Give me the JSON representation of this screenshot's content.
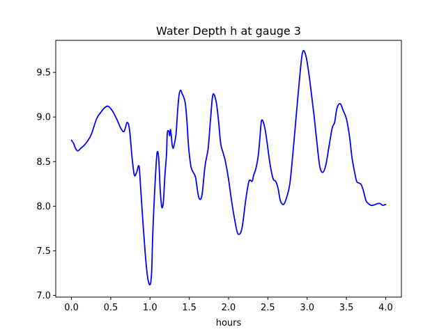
{
  "chart_data": {
    "type": "line",
    "title": "Water Depth h at gauge 3",
    "xlabel": "hours",
    "ylabel": "",
    "xlim": [
      -0.2,
      4.2
    ],
    "ylim": [
      6.98,
      9.86
    ],
    "xticks": [
      0.0,
      0.5,
      1.0,
      1.5,
      2.0,
      2.5,
      3.0,
      3.5,
      4.0
    ],
    "xtick_labels": [
      "0.0",
      "0.5",
      "1.0",
      "1.5",
      "2.0",
      "2.5",
      "3.0",
      "3.5",
      "4.0"
    ],
    "yticks": [
      7.0,
      7.5,
      8.0,
      8.5,
      9.0,
      9.5
    ],
    "ytick_labels": [
      "7.0",
      "7.5",
      "8.0",
      "8.5",
      "9.0",
      "9.5"
    ],
    "grid": false,
    "series": [
      {
        "color": "#0000ff",
        "x": [
          0.0,
          0.03,
          0.05,
          0.08,
          0.12,
          0.18,
          0.25,
          0.32,
          0.38,
          0.43,
          0.47,
          0.52,
          0.58,
          0.63,
          0.67,
          0.71,
          0.74,
          0.77,
          0.8,
          0.83,
          0.86,
          0.88,
          0.91,
          0.94,
          0.97,
          1.0,
          1.02,
          1.03,
          1.04,
          1.05,
          1.07,
          1.09,
          1.11,
          1.13,
          1.15,
          1.17,
          1.19,
          1.21,
          1.22,
          1.24,
          1.25,
          1.26,
          1.27,
          1.28,
          1.29,
          1.3,
          1.33,
          1.35,
          1.37,
          1.39,
          1.41,
          1.43,
          1.45,
          1.47,
          1.49,
          1.52,
          1.55,
          1.58,
          1.62,
          1.66,
          1.7,
          1.74,
          1.77,
          1.8,
          1.84,
          1.87,
          1.9,
          1.93,
          1.96,
          2.0,
          2.04,
          2.08,
          2.12,
          2.17,
          2.22,
          2.26,
          2.3,
          2.32,
          2.35,
          2.38,
          2.4,
          2.42,
          2.45,
          2.48,
          2.51,
          2.54,
          2.57,
          2.6,
          2.63,
          2.66,
          2.7,
          2.74,
          2.78,
          2.82,
          2.86,
          2.9,
          2.94,
          2.98,
          3.02,
          3.06,
          3.09,
          3.12,
          3.16,
          3.2,
          3.24,
          3.28,
          3.32,
          3.35,
          3.38,
          3.42,
          3.46,
          3.5,
          3.54,
          3.57,
          3.6,
          3.63,
          3.66,
          3.69,
          3.72,
          3.75,
          3.78,
          3.81,
          3.84,
          3.87,
          3.9,
          3.93,
          3.96,
          4.0
        ],
        "y": [
          8.74,
          8.7,
          8.65,
          8.62,
          8.65,
          8.7,
          8.8,
          8.98,
          9.06,
          9.11,
          9.12,
          9.07,
          8.97,
          8.87,
          8.84,
          8.94,
          8.85,
          8.56,
          8.35,
          8.38,
          8.45,
          8.22,
          7.82,
          7.46,
          7.2,
          7.12,
          7.25,
          7.55,
          7.8,
          8.0,
          8.35,
          8.6,
          8.54,
          8.18,
          7.99,
          8.05,
          8.35,
          8.58,
          8.82,
          8.84,
          8.79,
          8.86,
          8.8,
          8.7,
          8.66,
          8.66,
          8.8,
          9.05,
          9.25,
          9.3,
          9.26,
          9.22,
          9.15,
          8.95,
          8.68,
          8.45,
          8.38,
          8.32,
          8.1,
          8.12,
          8.45,
          8.65,
          8.97,
          9.25,
          9.18,
          8.98,
          8.7,
          8.6,
          8.5,
          8.3,
          8.05,
          7.84,
          7.69,
          7.75,
          8.08,
          8.28,
          8.28,
          8.35,
          8.43,
          8.58,
          8.78,
          8.96,
          8.92,
          8.78,
          8.58,
          8.41,
          8.3,
          8.28,
          8.2,
          8.06,
          8.02,
          8.1,
          8.25,
          8.6,
          9.0,
          9.4,
          9.72,
          9.7,
          9.5,
          9.22,
          9.0,
          8.75,
          8.45,
          8.38,
          8.47,
          8.68,
          8.88,
          8.94,
          9.1,
          9.15,
          9.07,
          8.98,
          8.78,
          8.55,
          8.4,
          8.28,
          8.26,
          8.24,
          8.16,
          8.06,
          8.03,
          8.01,
          8.01,
          8.02,
          8.03,
          8.03,
          8.01,
          8.02
        ]
      }
    ]
  }
}
